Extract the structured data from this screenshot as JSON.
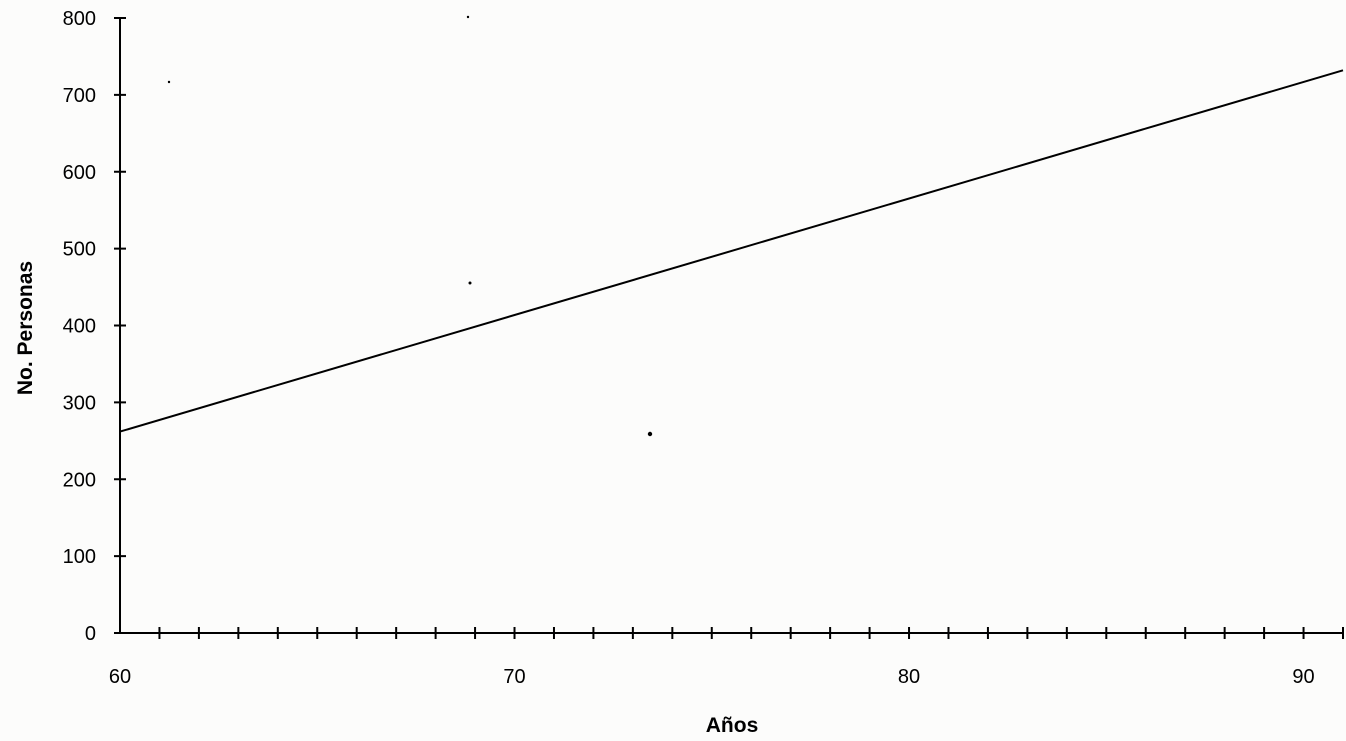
{
  "chart_data": {
    "type": "line",
    "title": "",
    "xlabel": "Años",
    "ylabel": "No. Personas",
    "xlim": [
      60,
      91
    ],
    "ylim": [
      0,
      800
    ],
    "x_ticks": [
      "60",
      "70",
      "80",
      "90"
    ],
    "y_ticks": [
      "0",
      "100",
      "200",
      "300",
      "400",
      "500",
      "600",
      "700",
      "800"
    ],
    "x_minor_step": 1,
    "grid": false,
    "legend": "none",
    "series": [
      {
        "x": [
          60,
          91
        ],
        "y": [
          262,
          732
        ]
      }
    ]
  }
}
